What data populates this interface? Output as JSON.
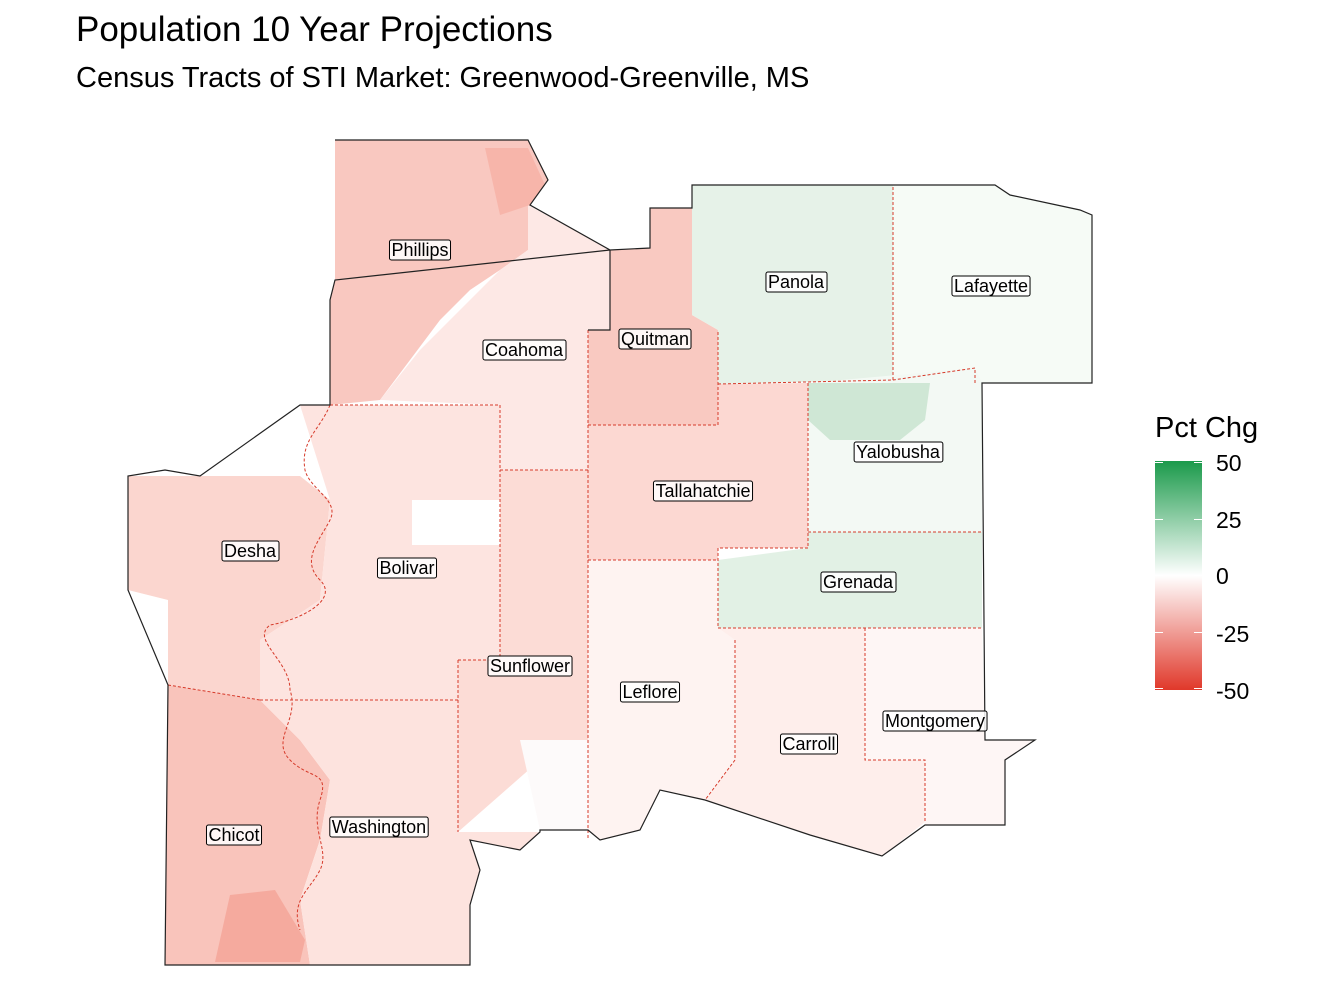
{
  "title": "Population 10 Year Projections",
  "subtitle": "Census Tracts of STI Market: Greenwood-Greenville, MS",
  "legend": {
    "title": "Pct Chg",
    "labels": [
      "50",
      "25",
      "0",
      "-25",
      "-50"
    ],
    "colors": {
      "high": "#1b9a4b",
      "mid": "#ffffff",
      "low": "#e0382a"
    }
  },
  "counties": [
    {
      "name": "Phillips"
    },
    {
      "name": "Coahoma"
    },
    {
      "name": "Quitman"
    },
    {
      "name": "Panola"
    },
    {
      "name": "Lafayette"
    },
    {
      "name": "Yalobusha"
    },
    {
      "name": "Tallahatchie"
    },
    {
      "name": "Desha"
    },
    {
      "name": "Bolivar"
    },
    {
      "name": "Grenada"
    },
    {
      "name": "Sunflower"
    },
    {
      "name": "Leflore"
    },
    {
      "name": "Montgomery"
    },
    {
      "name": "Carroll"
    },
    {
      "name": "Chicot"
    },
    {
      "name": "Washington"
    }
  ]
}
